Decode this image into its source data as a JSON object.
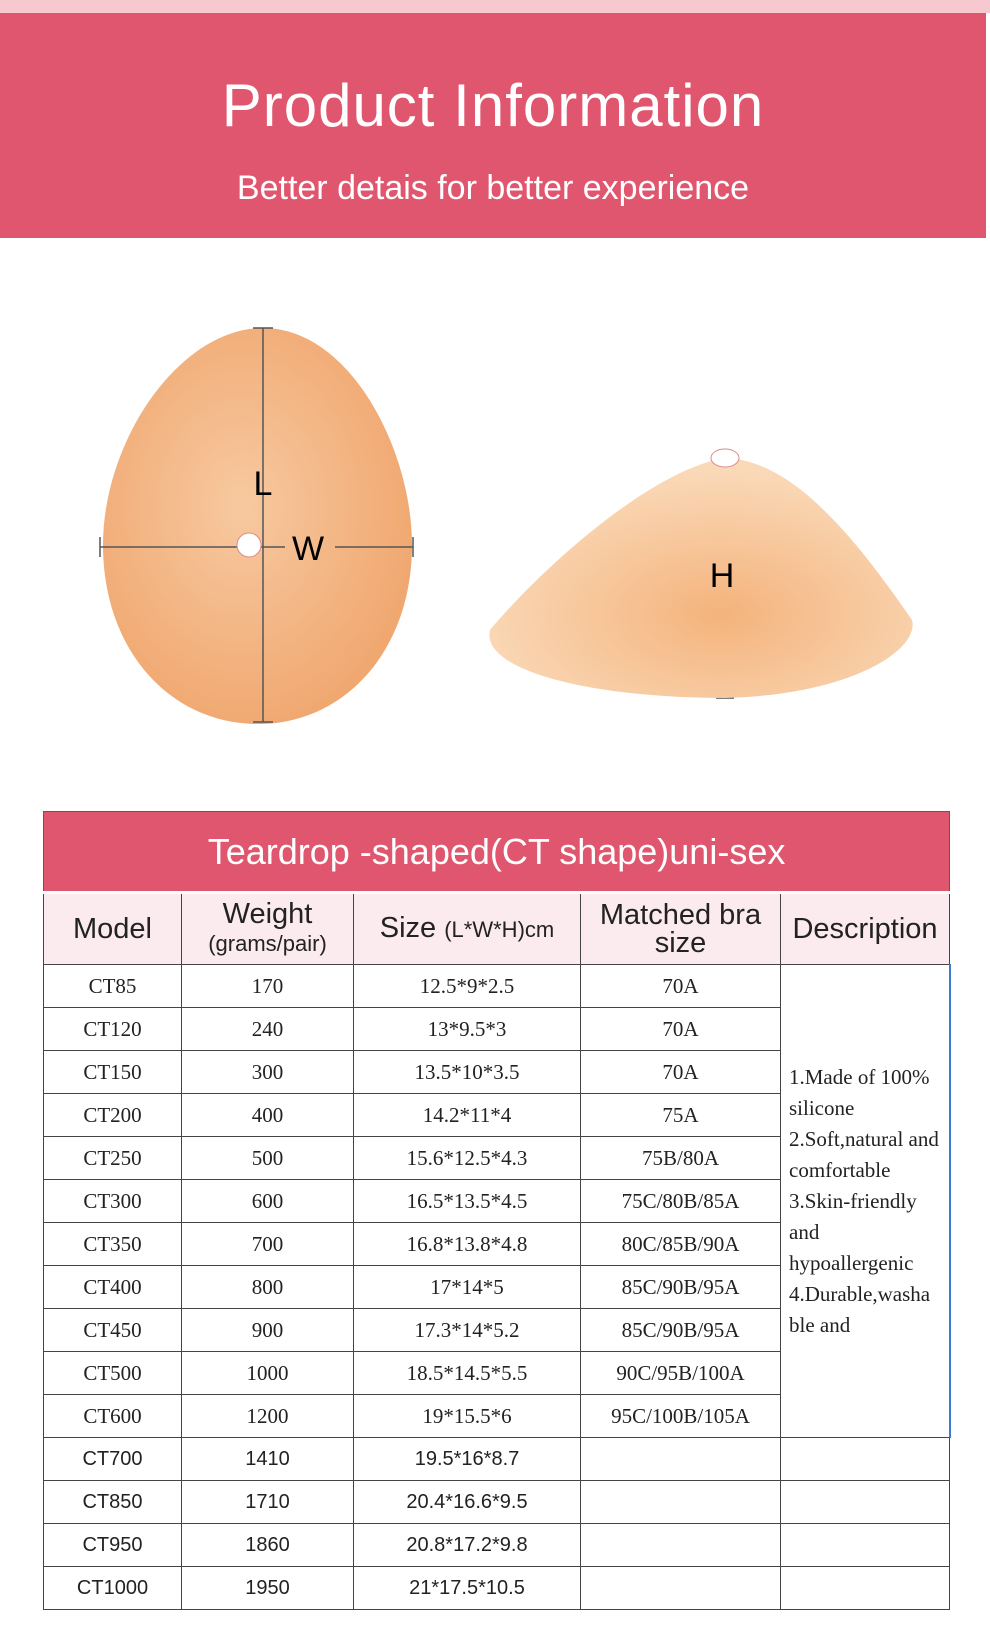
{
  "header": {
    "title": "Product Information",
    "subtitle": "Better detais for better experience"
  },
  "figure": {
    "labels": {
      "length": "L",
      "width": "W",
      "height": "H"
    }
  },
  "table": {
    "title": "Teardrop -shaped(CT shape)uni-sex",
    "columns": {
      "model": "Model",
      "weight": "Weight",
      "weight_unit": "(grams/pair)",
      "size": "Size",
      "size_unit": "(L*W*H)cm",
      "bra": "Matched bra size",
      "description": "Description"
    },
    "rows": [
      {
        "model": "CT85",
        "weight": 170,
        "size": "12.5*9*2.5",
        "bra": "70A"
      },
      {
        "model": "CT120",
        "weight": 240,
        "size": "13*9.5*3",
        "bra": "70A"
      },
      {
        "model": "CT150",
        "weight": 300,
        "size": "13.5*10*3.5",
        "bra": "70A"
      },
      {
        "model": "CT200",
        "weight": 400,
        "size": "14.2*11*4",
        "bra": "75A"
      },
      {
        "model": "CT250",
        "weight": 500,
        "size": "15.6*12.5*4.3",
        "bra": "75B/80A"
      },
      {
        "model": "CT300",
        "weight": 600,
        "size": "16.5*13.5*4.5",
        "bra": "75C/80B/85A"
      },
      {
        "model": "CT350",
        "weight": 700,
        "size": "16.8*13.8*4.8",
        "bra": "80C/85B/90A"
      },
      {
        "model": "CT400",
        "weight": 800,
        "size": "17*14*5",
        "bra": "85C/90B/95A"
      },
      {
        "model": "CT450",
        "weight": 900,
        "size": "17.3*14*5.2",
        "bra": "85C/90B/95A"
      },
      {
        "model": "CT500",
        "weight": 1000,
        "size": "18.5*14.5*5.5",
        "bra": "90C/95B/100A"
      },
      {
        "model": "CT600",
        "weight": 1200,
        "size": "19*15.5*6",
        "bra": "95C/100B/105A"
      },
      {
        "model": "CT700",
        "weight": 1410,
        "size": "19.5*16*8.7"
      },
      {
        "model": "CT850",
        "weight": 1710,
        "size": "20.4*16.6*9.5"
      },
      {
        "model": "CT950",
        "weight": 1860,
        "size": "20.8*17.2*9.8"
      },
      {
        "model": "CT1000",
        "weight": 1950,
        "size": "21*17.5*10.5"
      }
    ],
    "description": "1.Made of 100% silicone 2.Soft,natural and comfortable 3.Skin-friendly and hypoallergenic 4.Durable,washa ble and"
  }
}
